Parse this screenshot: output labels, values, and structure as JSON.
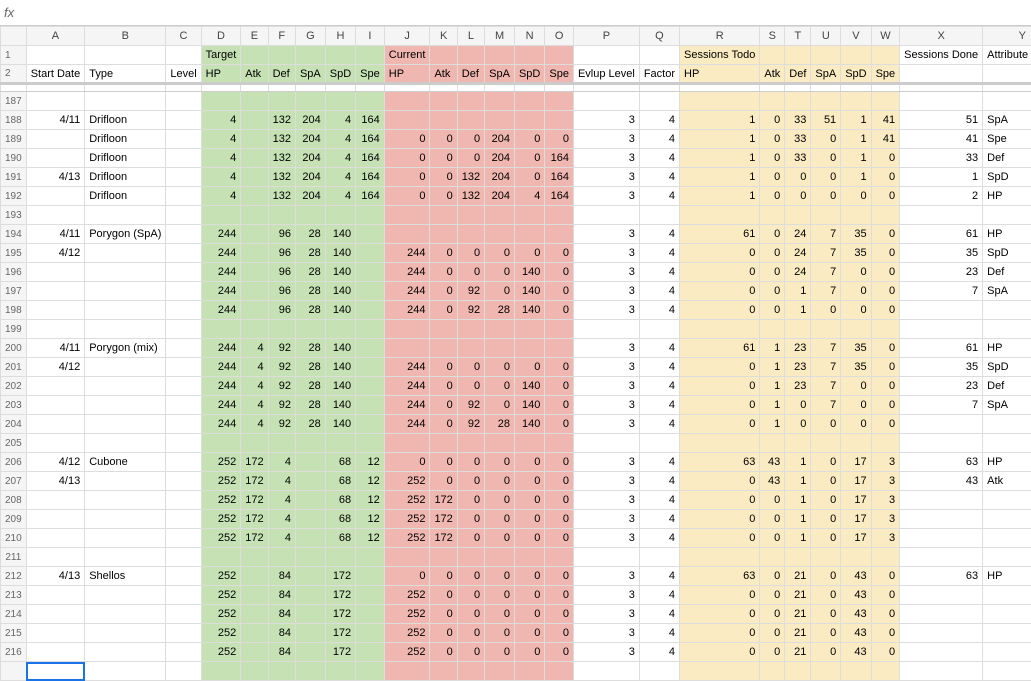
{
  "formulaBar": {
    "fx": "fx"
  },
  "columns": [
    "",
    "A",
    "B",
    "C",
    "D",
    "E",
    "F",
    "G",
    "H",
    "I",
    "J",
    "K",
    "L",
    "M",
    "N",
    "O",
    "P",
    "Q",
    "R",
    "S",
    "T",
    "U",
    "V",
    "W",
    "X",
    "Y",
    ""
  ],
  "headerLabels": {
    "r1": {
      "target": "Target",
      "current": "Current",
      "sessionsTodo": "Sessions Todo",
      "sessionsDone": "Sessions Done",
      "attributeDone": "Attribute Done"
    },
    "r2": {
      "startDate": "Start Date",
      "type": "Type",
      "level": "Level",
      "hp": "HP",
      "atk": "Atk",
      "def": "Def",
      "spa": "SpA",
      "spd": "SpD",
      "spe": "Spe",
      "evlup": "Evlup Level",
      "factor": "Factor"
    }
  },
  "rowNumbers": [
    187,
    188,
    189,
    190,
    191,
    192,
    193,
    194,
    195,
    196,
    197,
    198,
    199,
    200,
    201,
    202,
    203,
    204,
    205,
    206,
    207,
    208,
    209,
    210,
    211,
    212,
    213,
    214,
    215,
    216
  ],
  "last_row_label": "",
  "rows": [
    {
      "date": "",
      "type": "",
      "tgt": [
        "",
        "",
        "",
        "",
        "",
        ""
      ],
      "cur": [
        "",
        "",
        "",
        "",
        "",
        ""
      ],
      "ev": "",
      "fa": "",
      "todo": [
        "",
        "",
        "",
        "",
        "",
        ""
      ],
      "sd": "",
      "ad": ""
    },
    {
      "date": "4/11",
      "type": "Drifloon",
      "tgt": [
        "4",
        "",
        "132",
        "204",
        "4",
        "164"
      ],
      "cur": [
        "",
        "",
        "",
        "",
        "",
        ""
      ],
      "ev": "3",
      "fa": "4",
      "todo": [
        "1",
        "0",
        "33",
        "51",
        "1",
        "41"
      ],
      "sd": "51",
      "ad": "SpA"
    },
    {
      "date": "",
      "type": "Drifloon",
      "tgt": [
        "4",
        "",
        "132",
        "204",
        "4",
        "164"
      ],
      "cur": [
        "0",
        "0",
        "0",
        "204",
        "0",
        "0"
      ],
      "ev": "3",
      "fa": "4",
      "todo": [
        "1",
        "0",
        "33",
        "0",
        "1",
        "41"
      ],
      "sd": "41",
      "ad": "Spe"
    },
    {
      "date": "",
      "type": "Drifloon",
      "tgt": [
        "4",
        "",
        "132",
        "204",
        "4",
        "164"
      ],
      "cur": [
        "0",
        "0",
        "0",
        "204",
        "0",
        "164"
      ],
      "ev": "3",
      "fa": "4",
      "todo": [
        "1",
        "0",
        "33",
        "0",
        "1",
        "0"
      ],
      "sd": "33",
      "ad": "Def"
    },
    {
      "date": "4/13",
      "type": "Drifloon",
      "tgt": [
        "4",
        "",
        "132",
        "204",
        "4",
        "164"
      ],
      "cur": [
        "0",
        "0",
        "132",
        "204",
        "0",
        "164"
      ],
      "ev": "3",
      "fa": "4",
      "todo": [
        "1",
        "0",
        "0",
        "0",
        "1",
        "0"
      ],
      "sd": "1",
      "ad": "SpD"
    },
    {
      "date": "",
      "type": "Drifloon",
      "tgt": [
        "4",
        "",
        "132",
        "204",
        "4",
        "164"
      ],
      "cur": [
        "0",
        "0",
        "132",
        "204",
        "4",
        "164"
      ],
      "ev": "3",
      "fa": "4",
      "todo": [
        "1",
        "0",
        "0",
        "0",
        "0",
        "0"
      ],
      "sd": "2",
      "ad": "HP"
    },
    {
      "date": "",
      "type": "",
      "tgt": [
        "",
        "",
        "",
        "",
        "",
        ""
      ],
      "cur": [
        "",
        "",
        "",
        "",
        "",
        ""
      ],
      "ev": "",
      "fa": "",
      "todo": [
        "",
        "",
        "",
        "",
        "",
        ""
      ],
      "sd": "",
      "ad": ""
    },
    {
      "date": "4/11",
      "type": "Porygon (SpA)",
      "tgt": [
        "244",
        "",
        "96",
        "28",
        "140",
        ""
      ],
      "cur": [
        "",
        "",
        "",
        "",
        "",
        ""
      ],
      "ev": "3",
      "fa": "4",
      "todo": [
        "61",
        "0",
        "24",
        "7",
        "35",
        "0"
      ],
      "sd": "61",
      "ad": "HP"
    },
    {
      "date": "4/12",
      "type": "",
      "tgt": [
        "244",
        "",
        "96",
        "28",
        "140",
        ""
      ],
      "cur": [
        "244",
        "0",
        "0",
        "0",
        "0",
        "0"
      ],
      "ev": "3",
      "fa": "4",
      "todo": [
        "0",
        "0",
        "24",
        "7",
        "35",
        "0"
      ],
      "sd": "35",
      "ad": "SpD"
    },
    {
      "date": "",
      "type": "",
      "tgt": [
        "244",
        "",
        "96",
        "28",
        "140",
        ""
      ],
      "cur": [
        "244",
        "0",
        "0",
        "0",
        "140",
        "0"
      ],
      "ev": "3",
      "fa": "4",
      "todo": [
        "0",
        "0",
        "24",
        "7",
        "0",
        "0"
      ],
      "sd": "23",
      "ad": "Def"
    },
    {
      "date": "",
      "type": "",
      "tgt": [
        "244",
        "",
        "96",
        "28",
        "140",
        ""
      ],
      "cur": [
        "244",
        "0",
        "92",
        "0",
        "140",
        "0"
      ],
      "ev": "3",
      "fa": "4",
      "todo": [
        "0",
        "0",
        "1",
        "7",
        "0",
        "0"
      ],
      "sd": "7",
      "ad": "SpA"
    },
    {
      "date": "",
      "type": "",
      "tgt": [
        "244",
        "",
        "96",
        "28",
        "140",
        ""
      ],
      "cur": [
        "244",
        "0",
        "92",
        "28",
        "140",
        "0"
      ],
      "ev": "3",
      "fa": "4",
      "todo": [
        "0",
        "0",
        "1",
        "0",
        "0",
        "0"
      ],
      "sd": "",
      "ad": ""
    },
    {
      "date": "",
      "type": "",
      "tgt": [
        "",
        "",
        "",
        "",
        "",
        ""
      ],
      "cur": [
        "",
        "",
        "",
        "",
        "",
        ""
      ],
      "ev": "",
      "fa": "",
      "todo": [
        "",
        "",
        "",
        "",
        "",
        ""
      ],
      "sd": "",
      "ad": ""
    },
    {
      "date": "4/11",
      "type": "Porygon (mix)",
      "tgt": [
        "244",
        "4",
        "92",
        "28",
        "140",
        ""
      ],
      "cur": [
        "",
        "",
        "",
        "",
        "",
        ""
      ],
      "ev": "3",
      "fa": "4",
      "todo": [
        "61",
        "1",
        "23",
        "7",
        "35",
        "0"
      ],
      "sd": "61",
      "ad": "HP"
    },
    {
      "date": "4/12",
      "type": "",
      "tgt": [
        "244",
        "4",
        "92",
        "28",
        "140",
        ""
      ],
      "cur": [
        "244",
        "0",
        "0",
        "0",
        "0",
        "0"
      ],
      "ev": "3",
      "fa": "4",
      "todo": [
        "0",
        "1",
        "23",
        "7",
        "35",
        "0"
      ],
      "sd": "35",
      "ad": "SpD"
    },
    {
      "date": "",
      "type": "",
      "tgt": [
        "244",
        "4",
        "92",
        "28",
        "140",
        ""
      ],
      "cur": [
        "244",
        "0",
        "0",
        "0",
        "140",
        "0"
      ],
      "ev": "3",
      "fa": "4",
      "todo": [
        "0",
        "1",
        "23",
        "7",
        "0",
        "0"
      ],
      "sd": "23",
      "ad": "Def"
    },
    {
      "date": "",
      "type": "",
      "tgt": [
        "244",
        "4",
        "92",
        "28",
        "140",
        ""
      ],
      "cur": [
        "244",
        "0",
        "92",
        "0",
        "140",
        "0"
      ],
      "ev": "3",
      "fa": "4",
      "todo": [
        "0",
        "1",
        "0",
        "7",
        "0",
        "0"
      ],
      "sd": "7",
      "ad": "SpA"
    },
    {
      "date": "",
      "type": "",
      "tgt": [
        "244",
        "4",
        "92",
        "28",
        "140",
        ""
      ],
      "cur": [
        "244",
        "0",
        "92",
        "28",
        "140",
        "0"
      ],
      "ev": "3",
      "fa": "4",
      "todo": [
        "0",
        "1",
        "0",
        "0",
        "0",
        "0"
      ],
      "sd": "",
      "ad": ""
    },
    {
      "date": "",
      "type": "",
      "tgt": [
        "",
        "",
        "",
        "",
        "",
        ""
      ],
      "cur": [
        "",
        "",
        "",
        "",
        "",
        ""
      ],
      "ev": "",
      "fa": "",
      "todo": [
        "",
        "",
        "",
        "",
        "",
        ""
      ],
      "sd": "",
      "ad": ""
    },
    {
      "date": "4/12",
      "type": "Cubone",
      "tgt": [
        "252",
        "172",
        "4",
        "",
        "68",
        "12"
      ],
      "cur": [
        "0",
        "0",
        "0",
        "0",
        "0",
        "0"
      ],
      "ev": "3",
      "fa": "4",
      "todo": [
        "63",
        "43",
        "1",
        "0",
        "17",
        "3"
      ],
      "sd": "63",
      "ad": "HP"
    },
    {
      "date": "4/13",
      "type": "",
      "tgt": [
        "252",
        "172",
        "4",
        "",
        "68",
        "12"
      ],
      "cur": [
        "252",
        "0",
        "0",
        "0",
        "0",
        "0"
      ],
      "ev": "3",
      "fa": "4",
      "todo": [
        "0",
        "43",
        "1",
        "0",
        "17",
        "3"
      ],
      "sd": "43",
      "ad": "Atk"
    },
    {
      "date": "",
      "type": "",
      "tgt": [
        "252",
        "172",
        "4",
        "",
        "68",
        "12"
      ],
      "cur": [
        "252",
        "172",
        "0",
        "0",
        "0",
        "0"
      ],
      "ev": "3",
      "fa": "4",
      "todo": [
        "0",
        "0",
        "1",
        "0",
        "17",
        "3"
      ],
      "sd": "",
      "ad": ""
    },
    {
      "date": "",
      "type": "",
      "tgt": [
        "252",
        "172",
        "4",
        "",
        "68",
        "12"
      ],
      "cur": [
        "252",
        "172",
        "0",
        "0",
        "0",
        "0"
      ],
      "ev": "3",
      "fa": "4",
      "todo": [
        "0",
        "0",
        "1",
        "0",
        "17",
        "3"
      ],
      "sd": "",
      "ad": ""
    },
    {
      "date": "",
      "type": "",
      "tgt": [
        "252",
        "172",
        "4",
        "",
        "68",
        "12"
      ],
      "cur": [
        "252",
        "172",
        "0",
        "0",
        "0",
        "0"
      ],
      "ev": "3",
      "fa": "4",
      "todo": [
        "0",
        "0",
        "1",
        "0",
        "17",
        "3"
      ],
      "sd": "",
      "ad": ""
    },
    {
      "date": "",
      "type": "",
      "tgt": [
        "",
        "",
        "",
        "",
        "",
        ""
      ],
      "cur": [
        "",
        "",
        "",
        "",
        "",
        ""
      ],
      "ev": "",
      "fa": "",
      "todo": [
        "",
        "",
        "",
        "",
        "",
        ""
      ],
      "sd": "",
      "ad": ""
    },
    {
      "date": "4/13",
      "type": "Shellos",
      "tgt": [
        "252",
        "",
        "84",
        "",
        "172",
        ""
      ],
      "cur": [
        "0",
        "0",
        "0",
        "0",
        "0",
        "0"
      ],
      "ev": "3",
      "fa": "4",
      "todo": [
        "63",
        "0",
        "21",
        "0",
        "43",
        "0"
      ],
      "sd": "63",
      "ad": "HP"
    },
    {
      "date": "",
      "type": "",
      "tgt": [
        "252",
        "",
        "84",
        "",
        "172",
        ""
      ],
      "cur": [
        "252",
        "0",
        "0",
        "0",
        "0",
        "0"
      ],
      "ev": "3",
      "fa": "4",
      "todo": [
        "0",
        "0",
        "21",
        "0",
        "43",
        "0"
      ],
      "sd": "",
      "ad": ""
    },
    {
      "date": "",
      "type": "",
      "tgt": [
        "252",
        "",
        "84",
        "",
        "172",
        ""
      ],
      "cur": [
        "252",
        "0",
        "0",
        "0",
        "0",
        "0"
      ],
      "ev": "3",
      "fa": "4",
      "todo": [
        "0",
        "0",
        "21",
        "0",
        "43",
        "0"
      ],
      "sd": "",
      "ad": ""
    },
    {
      "date": "",
      "type": "",
      "tgt": [
        "252",
        "",
        "84",
        "",
        "172",
        ""
      ],
      "cur": [
        "252",
        "0",
        "0",
        "0",
        "0",
        "0"
      ],
      "ev": "3",
      "fa": "4",
      "todo": [
        "0",
        "0",
        "21",
        "0",
        "43",
        "0"
      ],
      "sd": "",
      "ad": ""
    },
    {
      "date": "",
      "type": "",
      "tgt": [
        "252",
        "",
        "84",
        "",
        "172",
        ""
      ],
      "cur": [
        "252",
        "0",
        "0",
        "0",
        "0",
        "0"
      ],
      "ev": "3",
      "fa": "4",
      "todo": [
        "0",
        "0",
        "21",
        "0",
        "43",
        "0"
      ],
      "sd": "",
      "ad": ""
    }
  ],
  "colors": {
    "green": "#c6e2b5",
    "red": "#efb7b0",
    "yellow": "#faebc2",
    "grid": "#dddddd",
    "header_bg": "#f5f5f5",
    "selection": "#1a73e8"
  }
}
